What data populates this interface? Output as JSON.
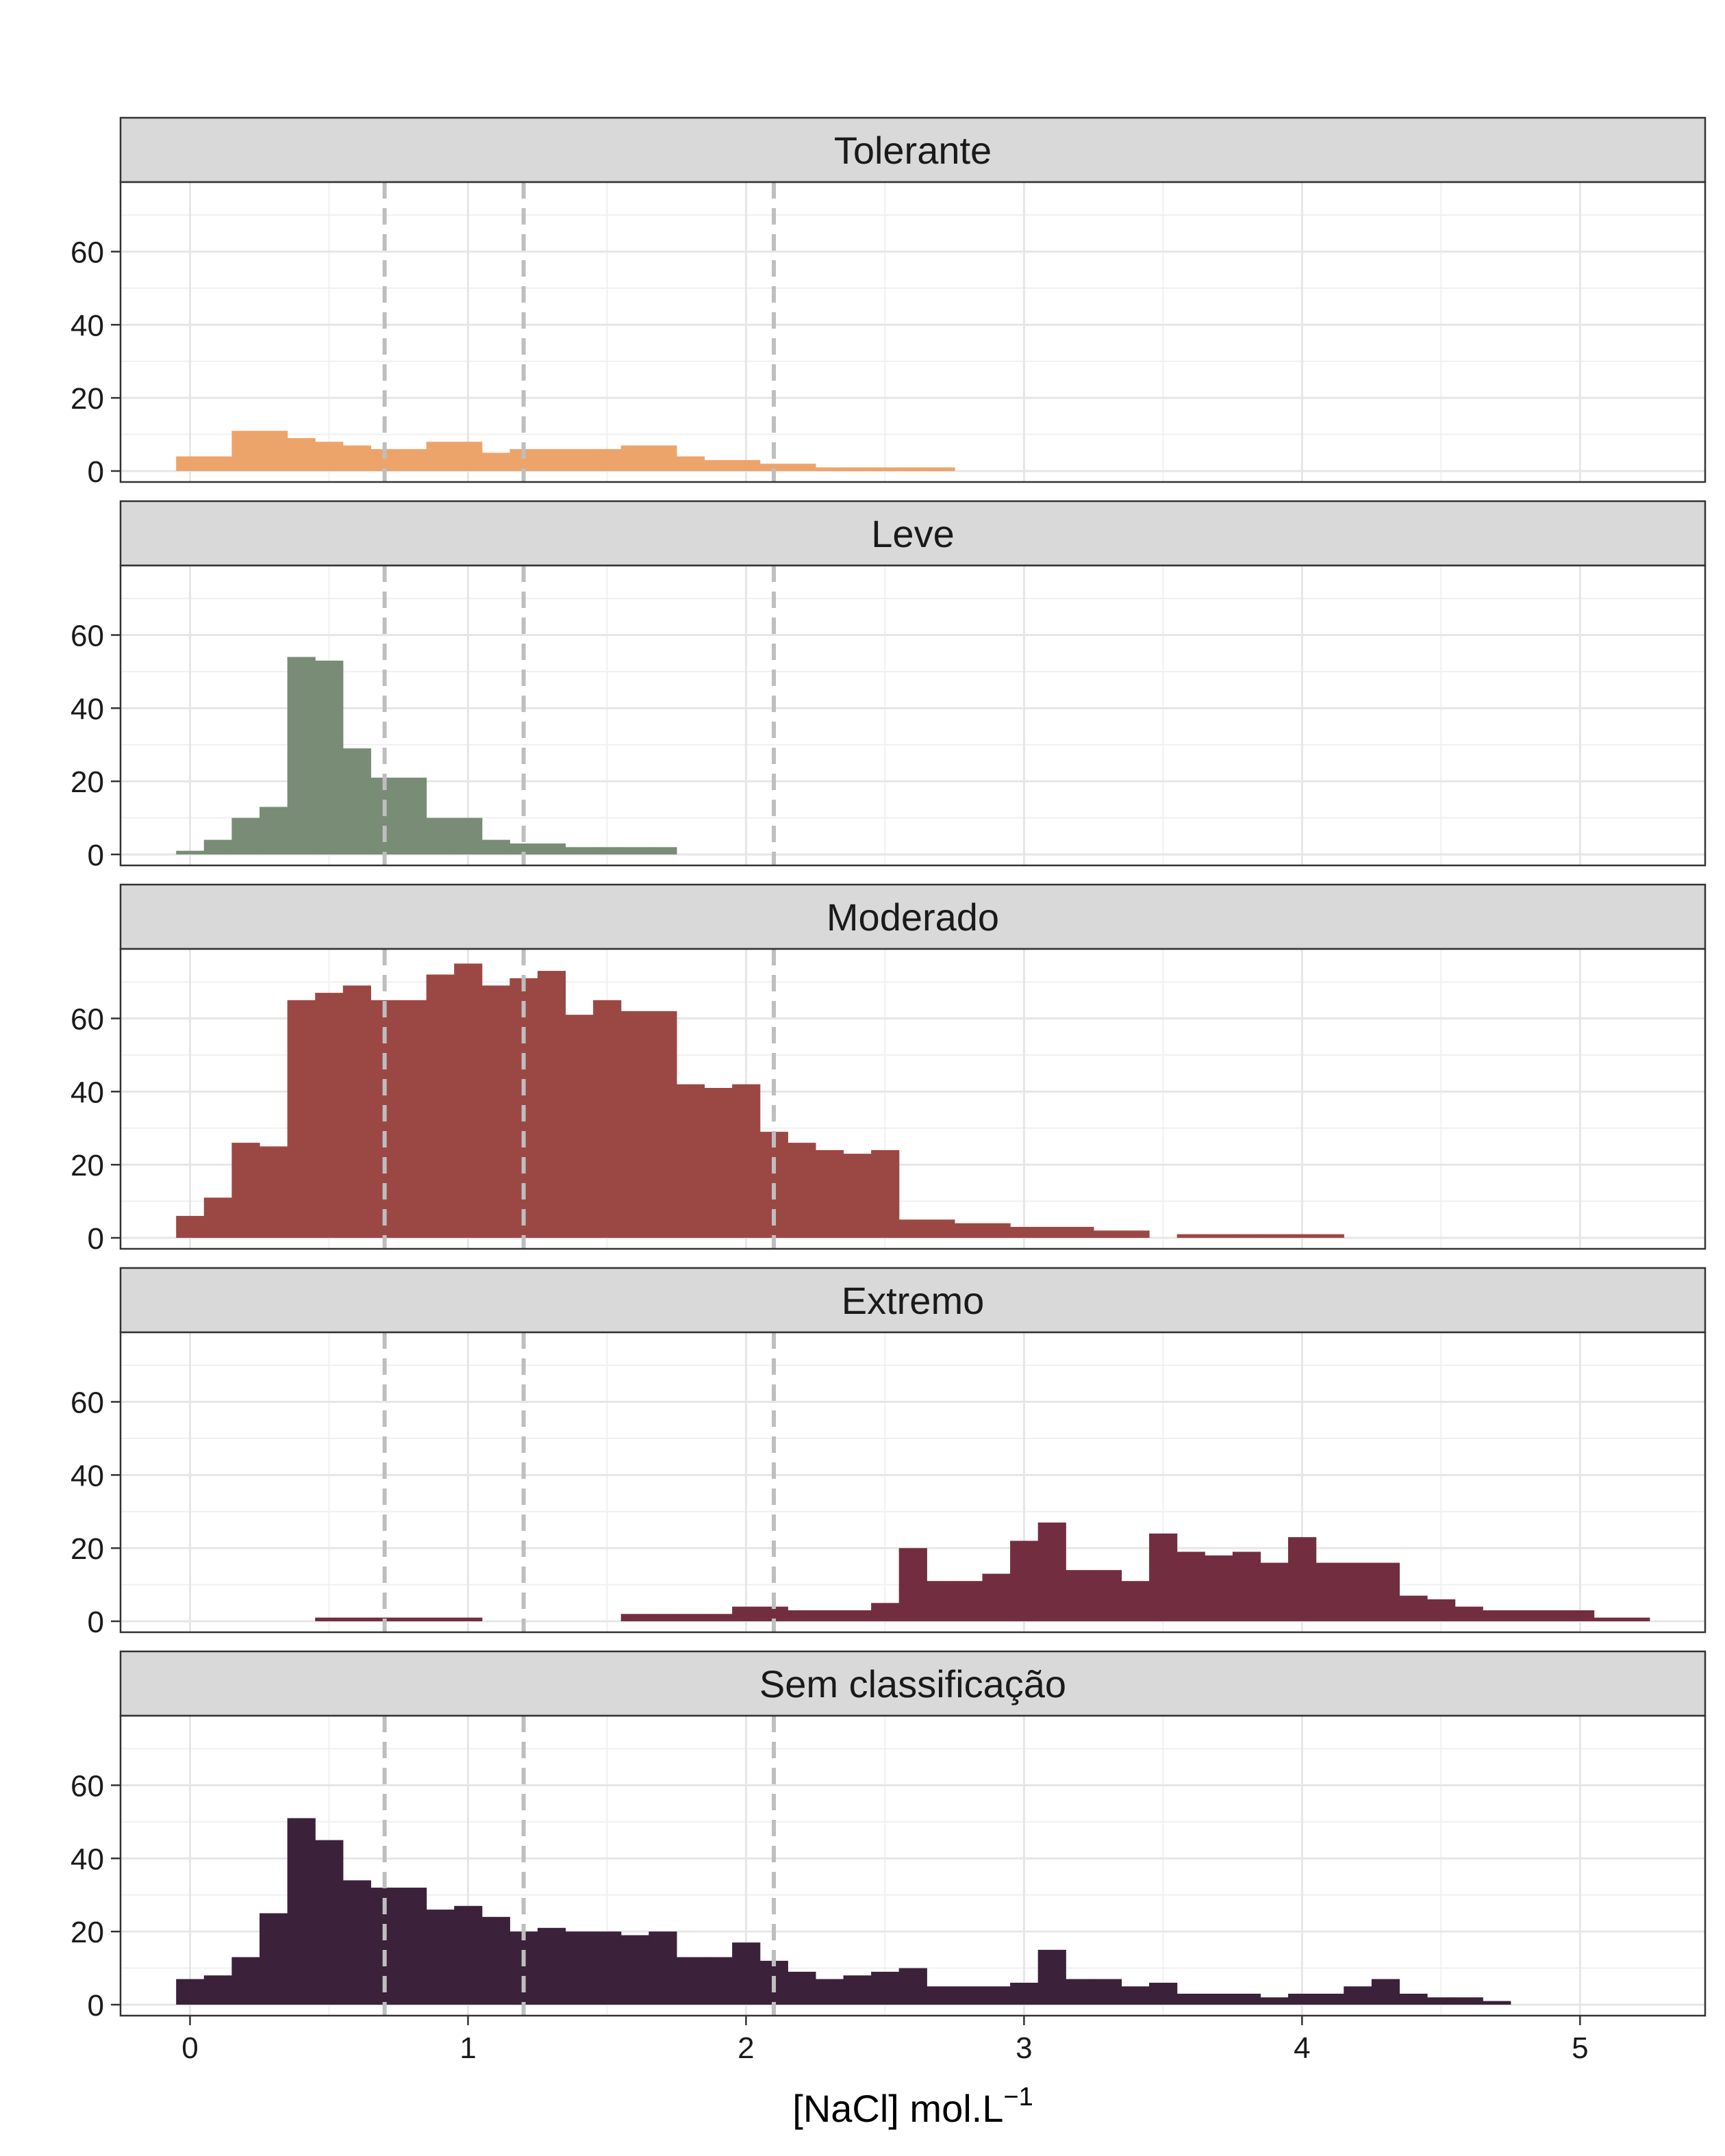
{
  "chart_data": {
    "type": "histogram",
    "facet_layout": "single column",
    "bin_width": 0.1,
    "xlabel": "[NaCl] mol.L",
    "xlabel_superscript": "−1",
    "ylabel": "",
    "xlim": [
      -0.25,
      5.45
    ],
    "ylim": [
      -3,
      79
    ],
    "x_ticks": [
      0,
      1,
      2,
      3,
      4,
      5
    ],
    "x_tick_labels": [
      "0",
      "1",
      "2",
      "3",
      "4",
      "5"
    ],
    "y_ticks": [
      0,
      20,
      40,
      60
    ],
    "y_tick_labels": [
      "0",
      "20",
      "40",
      "60"
    ],
    "reference_lines": [
      0.7,
      1.2,
      2.1
    ],
    "grid": true,
    "reference_line_color": "#bebebe",
    "panels": [
      {
        "label": "Tolerante",
        "color": "#eda46b",
        "bin_starts": [
          -0.05,
          0.05,
          0.15,
          0.25,
          0.35,
          0.45,
          0.55,
          0.65,
          0.75,
          0.85,
          0.95,
          1.05,
          1.15,
          1.25,
          1.35,
          1.45,
          1.55,
          1.65,
          1.75,
          1.85,
          1.95,
          2.05,
          2.15,
          2.25,
          2.35,
          2.45,
          2.55,
          2.65
        ],
        "counts": [
          4,
          4,
          11,
          11,
          9,
          8,
          7,
          6,
          6,
          8,
          8,
          5,
          6,
          6,
          6,
          6,
          7,
          7,
          4,
          3,
          3,
          2,
          2,
          1,
          1,
          1,
          1,
          1
        ]
      },
      {
        "label": "Leve",
        "color": "#798c76",
        "bin_starts": [
          -0.05,
          0.05,
          0.15,
          0.25,
          0.35,
          0.45,
          0.55,
          0.65,
          0.75,
          0.85,
          0.95,
          1.05,
          1.15,
          1.25,
          1.35,
          1.45,
          1.55,
          1.65
        ],
        "counts": [
          1,
          4,
          10,
          13,
          54,
          53,
          29,
          21,
          21,
          10,
          10,
          4,
          3,
          3,
          2,
          2,
          2,
          2
        ]
      },
      {
        "label": "Moderado",
        "color": "#9b4845",
        "bin_starts": [
          -0.05,
          0.05,
          0.15,
          0.25,
          0.35,
          0.45,
          0.55,
          0.65,
          0.75,
          0.85,
          0.95,
          1.05,
          1.15,
          1.25,
          1.35,
          1.45,
          1.55,
          1.65,
          1.75,
          1.85,
          1.95,
          2.05,
          2.15,
          2.25,
          2.35,
          2.45,
          2.55,
          2.65,
          2.75,
          2.85,
          2.95,
          3.05,
          3.15,
          3.25,
          3.35,
          3.45,
          3.55,
          3.65,
          3.75,
          3.85,
          3.95,
          4.05
        ],
        "counts": [
          6,
          11,
          26,
          25,
          65,
          67,
          69,
          65,
          65,
          72,
          75,
          69,
          71,
          73,
          61,
          65,
          62,
          62,
          42,
          41,
          42,
          29,
          26,
          24,
          23,
          24,
          5,
          5,
          4,
          4,
          3,
          3,
          3,
          2,
          2,
          0,
          1,
          1,
          1,
          1,
          1,
          1
        ]
      },
      {
        "label": "Extremo",
        "color": "#722e40",
        "bin_starts": [
          0.45,
          0.55,
          0.65,
          0.75,
          0.85,
          0.95,
          1.05,
          1.15,
          1.25,
          1.35,
          1.45,
          1.55,
          1.65,
          1.75,
          1.85,
          1.95,
          2.05,
          2.15,
          2.25,
          2.35,
          2.45,
          2.55,
          2.65,
          2.75,
          2.85,
          2.95,
          3.05,
          3.15,
          3.25,
          3.35,
          3.45,
          3.55,
          3.65,
          3.75,
          3.85,
          3.95,
          4.05,
          4.15,
          4.25,
          4.35,
          4.45,
          4.55,
          4.65,
          4.75,
          4.85,
          4.95,
          5.05,
          5.15
        ],
        "counts": [
          1,
          1,
          1,
          1,
          1,
          1,
          0,
          0,
          0,
          0,
          0,
          2,
          2,
          2,
          2,
          4,
          4,
          3,
          3,
          3,
          5,
          20,
          11,
          11,
          13,
          22,
          27,
          14,
          14,
          11,
          24,
          19,
          18,
          19,
          16,
          23,
          16,
          16,
          16,
          7,
          6,
          4,
          3,
          3,
          3,
          3,
          1,
          1
        ]
      },
      {
        "label": "Sem classificação",
        "color": "#3b213a",
        "bin_starts": [
          -0.05,
          0.05,
          0.15,
          0.25,
          0.35,
          0.45,
          0.55,
          0.65,
          0.75,
          0.85,
          0.95,
          1.05,
          1.15,
          1.25,
          1.35,
          1.45,
          1.55,
          1.65,
          1.75,
          1.85,
          1.95,
          2.05,
          2.15,
          2.25,
          2.35,
          2.45,
          2.55,
          2.65,
          2.75,
          2.85,
          2.95,
          3.05,
          3.15,
          3.25,
          3.35,
          3.45,
          3.55,
          3.65,
          3.75,
          3.85,
          3.95,
          4.05,
          4.15,
          4.25,
          4.35,
          4.45,
          4.55,
          4.65
        ],
        "counts": [
          7,
          8,
          13,
          25,
          51,
          45,
          34,
          32,
          32,
          26,
          27,
          24,
          20,
          21,
          20,
          20,
          19,
          20,
          13,
          13,
          17,
          12,
          9,
          7,
          8,
          9,
          10,
          5,
          5,
          5,
          6,
          15,
          7,
          7,
          5,
          6,
          3,
          3,
          3,
          2,
          3,
          3,
          5,
          7,
          3,
          2,
          2,
          1
        ]
      }
    ]
  }
}
